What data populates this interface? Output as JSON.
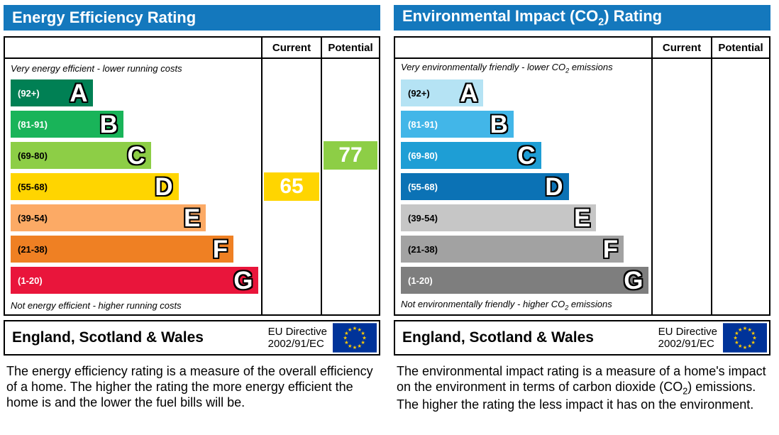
{
  "colors": {
    "header_bg": "#1478bd",
    "border": "#000000"
  },
  "footer": {
    "region": "England, Scotland & Wales",
    "directive_line1": "EU Directive",
    "directive_line2": "2002/91/EC",
    "flag_colors": {
      "field": "#003399",
      "stars": "#ffcc00"
    }
  },
  "energy": {
    "title": "Energy Efficiency Rating",
    "columns": {
      "current": "Current",
      "potential": "Potential"
    },
    "top_caption": "Very energy efficient - lower running costs",
    "bottom_caption": "Not energy efficient - higher running costs",
    "bands": [
      {
        "letter": "A",
        "range": "(92+)",
        "color": "#008054",
        "label_color": "#ffffff",
        "width_pct": 33
      },
      {
        "letter": "B",
        "range": "(81-91)",
        "color": "#19b459",
        "label_color": "#ffffff",
        "width_pct": 45
      },
      {
        "letter": "C",
        "range": "(69-80)",
        "color": "#8dce46",
        "label_color": "#000000",
        "width_pct": 56
      },
      {
        "letter": "D",
        "range": "(55-68)",
        "color": "#ffd500",
        "label_color": "#000000",
        "width_pct": 67
      },
      {
        "letter": "E",
        "range": "(39-54)",
        "color": "#fcaa65",
        "label_color": "#000000",
        "width_pct": 78
      },
      {
        "letter": "F",
        "range": "(21-38)",
        "color": "#ef8023",
        "label_color": "#000000",
        "width_pct": 89
      },
      {
        "letter": "G",
        "range": "(1-20)",
        "color": "#e9153b",
        "label_color": "#ffffff",
        "width_pct": 99
      }
    ],
    "current": {
      "value": "65",
      "band": "D",
      "row": 3,
      "color": "#ffd500"
    },
    "potential": {
      "value": "77",
      "band": "C",
      "row": 2,
      "color": "#8dce46"
    },
    "description": "The energy efficiency rating is a measure of the overall efficiency of a home. The higher the rating the more energy efficient the home is and the lower the fuel bills will be."
  },
  "co2": {
    "title": {
      "pre": "Environmental Impact (CO",
      "sub": "2",
      "post": ") Rating"
    },
    "columns": {
      "current": "Current",
      "potential": "Potential"
    },
    "top_caption": {
      "pre": "Very environmentally friendly - lower CO",
      "sub": "2",
      "post": " emissions"
    },
    "bottom_caption": {
      "pre": "Not environmentally friendly - higher CO",
      "sub": "2",
      "post": " emissions"
    },
    "bands": [
      {
        "letter": "A",
        "range": "(92+)",
        "color": "#b5e3f4",
        "label_color": "#000000",
        "width_pct": 33
      },
      {
        "letter": "B",
        "range": "(81-91)",
        "color": "#42b6e8",
        "label_color": "#ffffff",
        "width_pct": 45
      },
      {
        "letter": "C",
        "range": "(69-80)",
        "color": "#1e9ed5",
        "label_color": "#ffffff",
        "width_pct": 56
      },
      {
        "letter": "D",
        "range": "(55-68)",
        "color": "#0b72b5",
        "label_color": "#ffffff",
        "width_pct": 67
      },
      {
        "letter": "E",
        "range": "(39-54)",
        "color": "#c6c6c6",
        "label_color": "#000000",
        "width_pct": 78
      },
      {
        "letter": "F",
        "range": "(21-38)",
        "color": "#a2a2a2",
        "label_color": "#000000",
        "width_pct": 89
      },
      {
        "letter": "G",
        "range": "(1-20)",
        "color": "#7e7e7e",
        "label_color": "#ffffff",
        "width_pct": 99
      }
    ],
    "current": null,
    "potential": null,
    "description": {
      "pre": "The environmental impact rating is a measure of a home's impact on the environment in terms of carbon dioxide (CO",
      "sub": "2",
      "post": ") emissions. The higher the rating the less impact it has on the environment."
    }
  },
  "chart_data": [
    {
      "type": "bar",
      "title": "Energy Efficiency Rating",
      "categories": [
        "A (92+)",
        "B (81-91)",
        "C (69-80)",
        "D (55-68)",
        "E (39-54)",
        "F (21-38)",
        "G (1-20)"
      ],
      "bar_lengths_pct": [
        33,
        45,
        56,
        67,
        78,
        89,
        99
      ],
      "current": 65,
      "current_band": "D",
      "potential": 77,
      "potential_band": "C",
      "top_label": "Very energy efficient - lower running costs",
      "bottom_label": "Not energy efficient - higher running costs",
      "columns": [
        "Current",
        "Potential"
      ]
    },
    {
      "type": "bar",
      "title": "Environmental Impact (CO2) Rating",
      "categories": [
        "A (92+)",
        "B (81-91)",
        "C (69-80)",
        "D (55-68)",
        "E (39-54)",
        "F (21-38)",
        "G (1-20)"
      ],
      "bar_lengths_pct": [
        33,
        45,
        56,
        67,
        78,
        89,
        99
      ],
      "current": null,
      "potential": null,
      "top_label": "Very environmentally friendly - lower CO2 emissions",
      "bottom_label": "Not environmentally friendly - higher CO2 emissions",
      "columns": [
        "Current",
        "Potential"
      ]
    }
  ]
}
